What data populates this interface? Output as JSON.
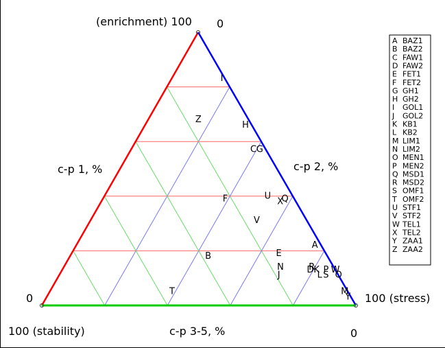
{
  "chart_data": {
    "type": "scatter",
    "subtype": "ternary",
    "axes": {
      "enrichment_label": "(enrichment) 100",
      "enrichment_zero": "0",
      "stress_label": "100 (stress)",
      "stress_zero": "0",
      "stability_label": "100 (stability)",
      "stability_zero": "0",
      "left_side_label": "c-p 1, %",
      "right_side_label": "c-p 2, %",
      "bottom_side_label": "c-p 3-5, %"
    },
    "colors": {
      "left_edge": "#ff0000",
      "right_edge": "#0000ff",
      "bottom_edge": "#00cc00",
      "grid_enrichment": "#ff6666",
      "grid_stress": "#7777ff",
      "grid_stability": "#66dd66"
    },
    "grid_step_percent": 20,
    "legend": {
      "placement": "right",
      "entries": [
        {
          "code": "A",
          "name": "BAZ1"
        },
        {
          "code": "B",
          "name": "BAZ2"
        },
        {
          "code": "C",
          "name": "FAW1"
        },
        {
          "code": "D",
          "name": "FAW2"
        },
        {
          "code": "E",
          "name": "FET1"
        },
        {
          "code": "F",
          "name": "FET2"
        },
        {
          "code": "G",
          "name": "GH1"
        },
        {
          "code": "H",
          "name": "GH2"
        },
        {
          "code": "I",
          "name": "GOL1"
        },
        {
          "code": "J",
          "name": "GOL2"
        },
        {
          "code": "K",
          "name": "KB1"
        },
        {
          "code": "L",
          "name": "KB2"
        },
        {
          "code": "M",
          "name": "LIM1"
        },
        {
          "code": "N",
          "name": "LIM2"
        },
        {
          "code": "O",
          "name": "MEN1"
        },
        {
          "code": "P",
          "name": "MEN2"
        },
        {
          "code": "Q",
          "name": "MSD1"
        },
        {
          "code": "R",
          "name": "MSD2"
        },
        {
          "code": "S",
          "name": "OMF1"
        },
        {
          "code": "T",
          "name": "OMF2"
        },
        {
          "code": "U",
          "name": "STF1"
        },
        {
          "code": "V",
          "name": "STF2"
        },
        {
          "code": "W",
          "name": "TEL1"
        },
        {
          "code": "X",
          "name": "TEL2"
        },
        {
          "code": "Y",
          "name": "ZAA1"
        },
        {
          "code": "Z",
          "name": "ZAA2"
        }
      ]
    },
    "points": [
      {
        "code": "A",
        "enrichment": 22,
        "stress": 76
      },
      {
        "code": "B",
        "enrichment": 18,
        "stress": 44
      },
      {
        "code": "C",
        "enrichment": 57,
        "stress": 39
      },
      {
        "code": "D",
        "enrichment": 13,
        "stress": 79
      },
      {
        "code": "E",
        "enrichment": 19,
        "stress": 66
      },
      {
        "code": "F",
        "enrichment": 39,
        "stress": 39
      },
      {
        "code": "G",
        "enrichment": 57,
        "stress": 41
      },
      {
        "code": "H",
        "enrichment": 66,
        "stress": 32
      },
      {
        "code": "I",
        "enrichment": 83,
        "stress": 16
      },
      {
        "code": "J",
        "enrichment": 11,
        "stress": 70
      },
      {
        "code": "K",
        "enrichment": 13,
        "stress": 81
      },
      {
        "code": "L",
        "enrichment": 11,
        "stress": 83
      },
      {
        "code": "M",
        "enrichment": 5,
        "stress": 94
      },
      {
        "code": "N",
        "enrichment": 14,
        "stress": 69
      },
      {
        "code": "O",
        "enrichment": 11,
        "stress": 89
      },
      {
        "code": "P",
        "enrichment": 13,
        "stress": 84
      },
      {
        "code": "Q",
        "enrichment": 39,
        "stress": 58
      },
      {
        "code": "R",
        "enrichment": 14,
        "stress": 79
      },
      {
        "code": "S",
        "enrichment": 11,
        "stress": 85
      },
      {
        "code": "T",
        "enrichment": 5,
        "stress": 39
      },
      {
        "code": "U",
        "enrichment": 40,
        "stress": 52
      },
      {
        "code": "V",
        "enrichment": 31,
        "stress": 53
      },
      {
        "code": "W",
        "enrichment": 13,
        "stress": 87
      },
      {
        "code": "X",
        "enrichment": 38,
        "stress": 57
      },
      {
        "code": "Y",
        "enrichment": 3,
        "stress": 96
      },
      {
        "code": "Z",
        "enrichment": 68,
        "stress": 16
      }
    ]
  }
}
